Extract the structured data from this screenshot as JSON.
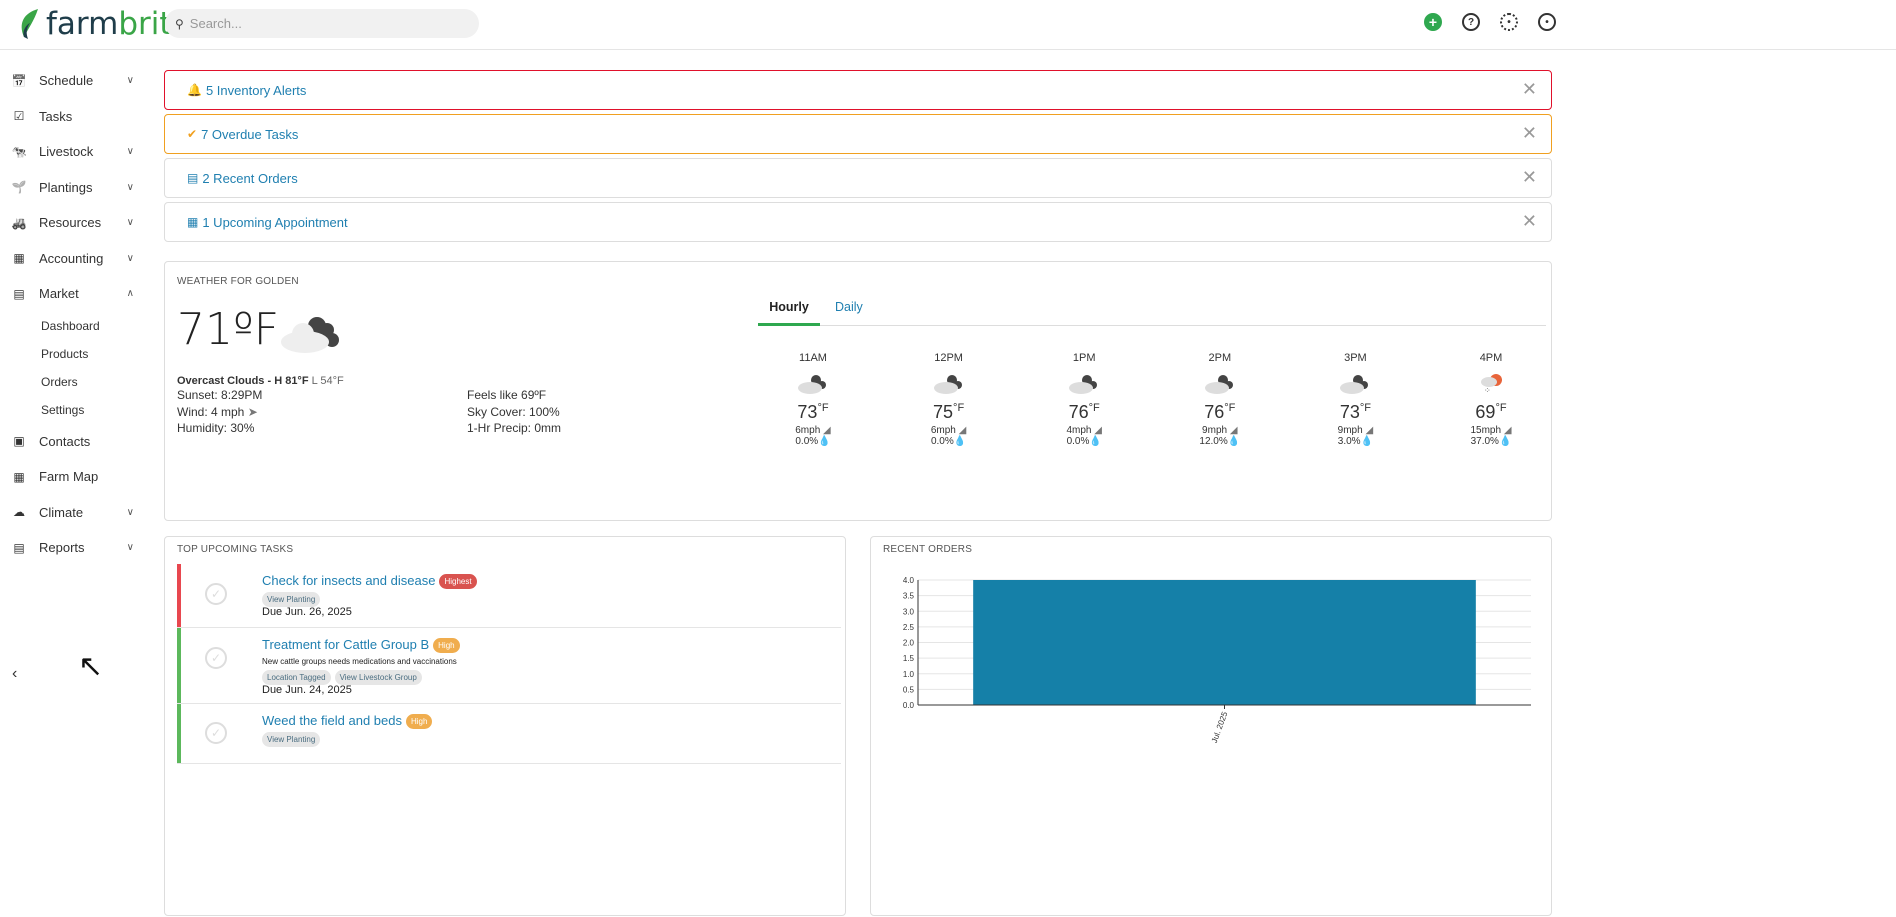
{
  "header": {
    "brand_a": "farm",
    "brand_b": "brite",
    "search_placeholder": "Search...",
    "icons": [
      "plus-circle-icon",
      "help-icon",
      "gear-icon",
      "user-icon"
    ]
  },
  "sidebar": {
    "items": [
      {
        "label": "Schedule",
        "icon": "calendar-icon",
        "chevron": "down"
      },
      {
        "label": "Tasks",
        "icon": "check-circle-icon"
      },
      {
        "label": "Livestock",
        "icon": "livestock-icon",
        "chevron": "down"
      },
      {
        "label": "Plantings",
        "icon": "sprout-icon",
        "chevron": "down"
      },
      {
        "label": "Resources",
        "icon": "tractor-icon",
        "chevron": "down"
      },
      {
        "label": "Accounting",
        "icon": "calculator-icon",
        "chevron": "down"
      },
      {
        "label": "Market",
        "icon": "store-icon",
        "chevron": "up",
        "children": [
          "Dashboard",
          "Products",
          "Orders",
          "Settings"
        ]
      },
      {
        "label": "Contacts",
        "icon": "contacts-icon"
      },
      {
        "label": "Farm Map",
        "icon": "map-icon"
      },
      {
        "label": "Climate",
        "icon": "climate-icon",
        "chevron": "down"
      },
      {
        "label": "Reports",
        "icon": "report-icon",
        "chevron": "down"
      }
    ]
  },
  "alerts": [
    {
      "label": "5 Inventory Alerts",
      "icon": "bell-icon",
      "color": "#e0112b"
    },
    {
      "label": "7 Overdue Tasks",
      "icon": "check-circle-icon",
      "color": "#f0a020"
    },
    {
      "label": "2 Recent Orders",
      "icon": "register-icon",
      "color": "#dddddd"
    },
    {
      "label": "1 Upcoming Appointment",
      "icon": "calendar-icon",
      "color": "#dddddd"
    }
  ],
  "weather": {
    "title": "WEATHER FOR GOLDEN",
    "temp": "71ºF",
    "summary": "Overcast Clouds - H 81°F",
    "low": "L 54°F",
    "sunset": "Sunset: 8:29PM",
    "wind": "Wind: 4 mph",
    "humidity": "Humidity: 30%",
    "feels": "Feels like 69ºF",
    "sky": "Sky Cover: 100%",
    "precip": "1-Hr Precip: 0mm",
    "tabs": [
      "Hourly",
      "Daily"
    ],
    "hourly": [
      {
        "time": "11AM",
        "temp": "73",
        "unit": "°F",
        "wind": "6mph",
        "precip": "0.0%",
        "icon": "cloudy-icon"
      },
      {
        "time": "12PM",
        "temp": "75",
        "unit": "°F",
        "wind": "6mph",
        "precip": "0.0%",
        "icon": "cloudy-icon"
      },
      {
        "time": "1PM",
        "temp": "76",
        "unit": "°F",
        "wind": "4mph",
        "precip": "0.0%",
        "icon": "cloudy-icon"
      },
      {
        "time": "2PM",
        "temp": "76",
        "unit": "°F",
        "wind": "9mph",
        "precip": "12.0%",
        "icon": "cloudy-icon"
      },
      {
        "time": "3PM",
        "temp": "73",
        "unit": "°F",
        "wind": "9mph",
        "precip": "3.0%",
        "icon": "cloudy-icon"
      },
      {
        "time": "4PM",
        "temp": "69",
        "unit": "°F",
        "wind": "15mph",
        "precip": "37.0%",
        "icon": "rain-sun-icon"
      }
    ]
  },
  "tasks": {
    "title": "TOP UPCOMING TASKS",
    "items": [
      {
        "title": "Check for insects and disease",
        "priority": "Highest",
        "priority_color": "#d9534f",
        "bar_color": "#e8474f",
        "desc": "",
        "pills": [
          "View Planting"
        ],
        "due": "Due Jun. 26, 2025"
      },
      {
        "title": "Treatment for Cattle Group B",
        "priority": "High",
        "priority_color": "#f0ad4e",
        "bar_color": "#5cb85c",
        "desc": "New cattle groups needs medications and vaccinations",
        "pills": [
          "Location Tagged",
          "View Livestock Group"
        ],
        "due": "Due Jun. 24, 2025"
      },
      {
        "title": "Weed the field and beds",
        "priority": "High",
        "priority_color": "#f0ad4e",
        "bar_color": "#5cb85c",
        "desc": "",
        "pills": [
          "View Planting"
        ],
        "due": ""
      }
    ]
  },
  "chart_data": {
    "type": "bar",
    "title": "RECENT ORDERS",
    "categories": [
      "Jul. 2025"
    ],
    "values": [
      4
    ],
    "ylim": [
      0,
      4
    ],
    "yticks": [
      "0.0",
      "0.5",
      "1.0",
      "1.5",
      "2.0",
      "2.5",
      "3.0",
      "3.5",
      "4.0"
    ],
    "grid": true,
    "color": "#1580a8"
  }
}
